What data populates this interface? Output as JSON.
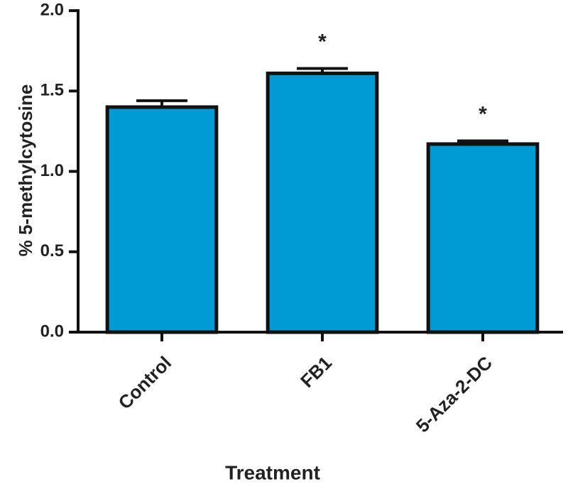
{
  "chart_data": {
    "type": "bar",
    "x_label": "Treatment",
    "y_label": "% 5-methylcytosine",
    "categories": [
      "Control",
      "FB1",
      "5-Aza-2-DC"
    ],
    "values": [
      1.4,
      1.61,
      1.17
    ],
    "errors": [
      0.04,
      0.03,
      0.02
    ],
    "significance": [
      null,
      "*",
      "*"
    ],
    "color": "#009bd5",
    "ylim": [
      0,
      2.0
    ],
    "yticks": [
      {
        "value": 0,
        "label": "0.0"
      },
      {
        "value": 0.5,
        "label": "0.5"
      },
      {
        "value": 1,
        "label": "1.0"
      },
      {
        "value": 1.5,
        "label": "1.5"
      },
      {
        "value": 2,
        "label": "2.0"
      }
    ],
    "grid": false
  }
}
